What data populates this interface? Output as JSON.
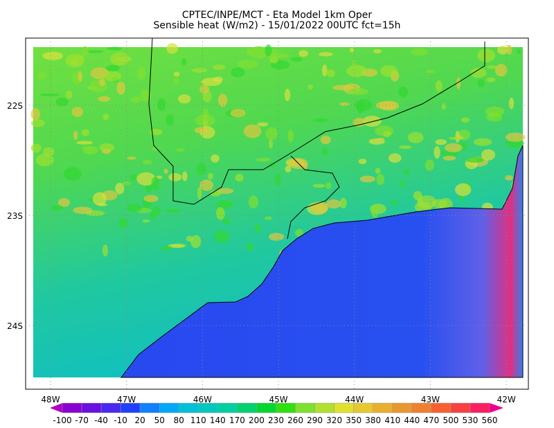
{
  "title": {
    "line1": "CPTEC/INPE/MCT -  Eta Model 1km Oper",
    "line2": "Sensible heat (W/m2) - 15/01/2022 00UTC fct=15h"
  },
  "map": {
    "lon_ticks": [
      "48W",
      "47W",
      "46W",
      "45W",
      "44W",
      "43W",
      "42W"
    ],
    "lat_ticks": [
      "22S",
      "23S",
      "24S"
    ],
    "land_color": "#40d840",
    "ocean_color": "#2850f0",
    "grid": "dotted"
  },
  "colorbar": {
    "labels": [
      "-100",
      "-70",
      "-40",
      "-10",
      "20",
      "50",
      "80",
      "110",
      "140",
      "170",
      "200",
      "230",
      "260",
      "290",
      "320",
      "350",
      "380",
      "410",
      "440",
      "470",
      "500",
      "530",
      "560"
    ],
    "low_color": "#b000c0",
    "high_color": "#f00090",
    "colors": [
      "#8a00d0",
      "#6a10e0",
      "#4a28f0",
      "#2040ff",
      "#1080ff",
      "#00a8f8",
      "#00c0d8",
      "#00c8c0",
      "#00d0a0",
      "#00d070",
      "#00d830",
      "#30e010",
      "#80e030",
      "#b0e030",
      "#e0e030",
      "#e8c830",
      "#e8b030",
      "#e89830",
      "#f08030",
      "#f86030",
      "#f84040",
      "#f82060"
    ]
  }
}
